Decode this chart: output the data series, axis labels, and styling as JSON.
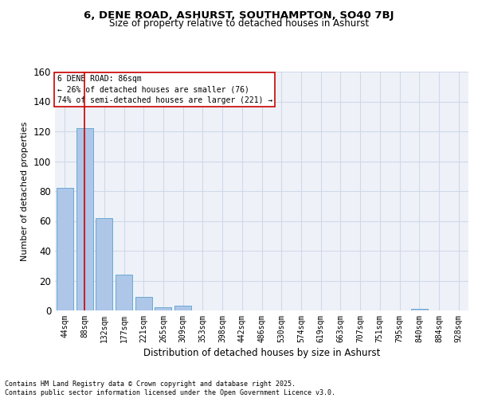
{
  "title": "6, DENE ROAD, ASHURST, SOUTHAMPTON, SO40 7BJ",
  "subtitle": "Size of property relative to detached houses in Ashurst",
  "xlabel": "Distribution of detached houses by size in Ashurst",
  "ylabel": "Number of detached properties",
  "bar_color": "#aec6e8",
  "bar_edge_color": "#6aaad4",
  "categories": [
    "44sqm",
    "88sqm",
    "132sqm",
    "177sqm",
    "221sqm",
    "265sqm",
    "309sqm",
    "353sqm",
    "398sqm",
    "442sqm",
    "486sqm",
    "530sqm",
    "574sqm",
    "619sqm",
    "663sqm",
    "707sqm",
    "751sqm",
    "795sqm",
    "840sqm",
    "884sqm",
    "928sqm"
  ],
  "values": [
    82,
    122,
    62,
    24,
    9,
    2,
    3,
    0,
    0,
    0,
    0,
    0,
    0,
    0,
    0,
    0,
    0,
    0,
    1,
    0,
    0
  ],
  "vline_color": "#cc0000",
  "vline_pos": 0.977,
  "annotation_line1": "6 DENE ROAD: 86sqm",
  "annotation_line2": "← 26% of detached houses are smaller (76)",
  "annotation_line3": "74% of semi-detached houses are larger (221) →",
  "annotation_box_color": "#ffffff",
  "annotation_box_edge": "#cc0000",
  "ylim": [
    0,
    160
  ],
  "yticks": [
    0,
    20,
    40,
    60,
    80,
    100,
    120,
    140,
    160
  ],
  "grid_color": "#d0d8e8",
  "background_color": "#eef2f8",
  "footer_line1": "Contains HM Land Registry data © Crown copyright and database right 2025.",
  "footer_line2": "Contains public sector information licensed under the Open Government Licence v3.0."
}
